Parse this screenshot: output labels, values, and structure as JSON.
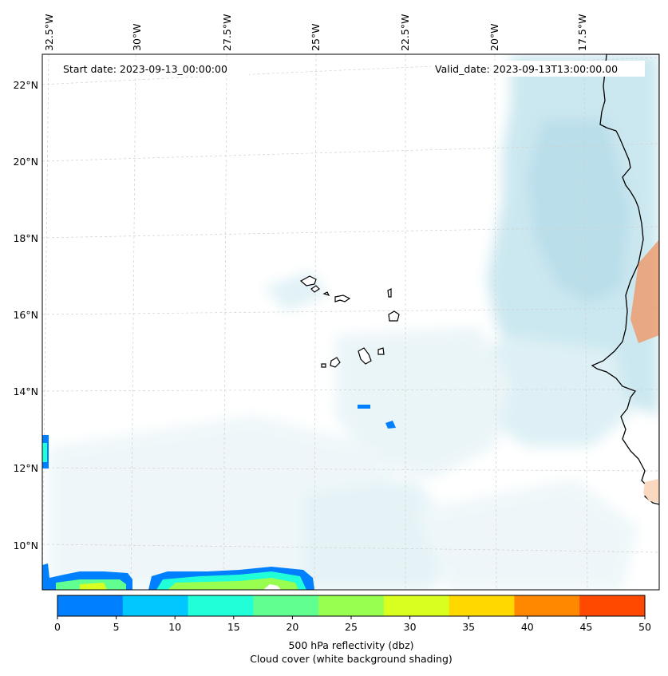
{
  "map": {
    "start_date": "Start date: 2023-09-13_00:00:00",
    "valid_date": "Valid_date: 2023-09-13T13:00:00.00",
    "lon_labels": [
      "32.5°W",
      "30°W",
      "27.5°W",
      "25°W",
      "22.5°W",
      "20°W",
      "17.5°W"
    ],
    "lat_labels": [
      "22°N",
      "20°N",
      "18°N",
      "16°N",
      "14°N",
      "12°N",
      "10°N"
    ]
  },
  "colorbar": {
    "ticks": [
      "0",
      "5",
      "10",
      "15",
      "20",
      "25",
      "30",
      "35",
      "40",
      "45",
      "50"
    ],
    "colors": [
      "#0080ff",
      "#00c8ff",
      "#20ffd8",
      "#60ff90",
      "#98ff50",
      "#d8ff20",
      "#ffd800",
      "#ff8800",
      "#ff4800"
    ],
    "label_line1": "500 hPa reflectivity (dbz)",
    "label_line2": "Cloud cover (white background shading)"
  },
  "styles": {
    "land_color": "#f4a06a",
    "cloud_color": "#a9d7e6"
  }
}
